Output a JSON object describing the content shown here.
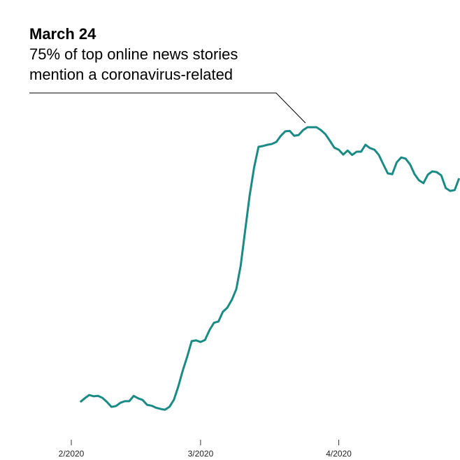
{
  "chart_data": {
    "type": "line",
    "annotation": {
      "title": "March 24",
      "lines": [
        "75% of top online news stories",
        "mention a coronavirus-related"
      ]
    },
    "x": [
      34,
      35,
      36,
      37,
      38,
      39,
      40,
      41,
      42,
      43,
      44,
      45,
      46,
      47,
      48,
      49,
      50,
      51,
      52,
      53,
      54,
      55,
      56,
      57,
      58,
      59,
      60,
      61,
      62,
      63,
      64,
      65,
      66,
      67,
      68,
      69,
      70,
      71,
      72,
      73,
      74,
      75,
      76,
      77,
      78,
      79,
      80,
      81,
      82,
      83,
      84,
      85,
      86,
      87,
      88,
      89,
      90,
      91,
      92,
      93,
      94,
      95,
      96,
      97,
      98,
      99,
      100,
      101,
      102,
      103,
      104,
      105,
      106,
      107,
      108,
      109,
      110,
      111,
      112,
      113,
      114,
      115,
      116,
      117,
      118,
      119
    ],
    "values": [
      7.7,
      8.6,
      9.4,
      9.1,
      9.2,
      8.7,
      7.7,
      6.5,
      6.7,
      7.5,
      7.9,
      7.9,
      9.2,
      8.6,
      8.2,
      7.0,
      6.8,
      6.3,
      6.0,
      5.8,
      6.5,
      8.2,
      11.5,
      15.4,
      18.8,
      22.6,
      22.8,
      22.4,
      22.9,
      25.3,
      27.1,
      27.4,
      29.8,
      30.8,
      32.7,
      35.3,
      41.1,
      49.7,
      58.2,
      65.1,
      70.2,
      70.4,
      70.7,
      70.9,
      71.4,
      72.9,
      74.0,
      74.1,
      72.9,
      73.1,
      74.3,
      75.0,
      75.0,
      75.0,
      74.3,
      73.3,
      71.7,
      70.0,
      69.5,
      68.3,
      69.3,
      68.2,
      69.0,
      69.0,
      70.7,
      69.9,
      69.5,
      68.2,
      65.9,
      63.7,
      63.5,
      66.4,
      67.6,
      67.3,
      65.9,
      63.5,
      62.0,
      61.3,
      63.4,
      64.2,
      64.0,
      63.2,
      60.1,
      59.4,
      59.6,
      62.5
    ],
    "color": "#1a8a85",
    "xlim": [
      16,
      119.2
    ],
    "xticks": [
      {
        "value": 32,
        "label": "2/2020"
      },
      {
        "value": 61,
        "label": "3/2020"
      },
      {
        "value": 92,
        "label": "4/2020"
      }
    ],
    "ylim": [
      0,
      80
    ]
  }
}
